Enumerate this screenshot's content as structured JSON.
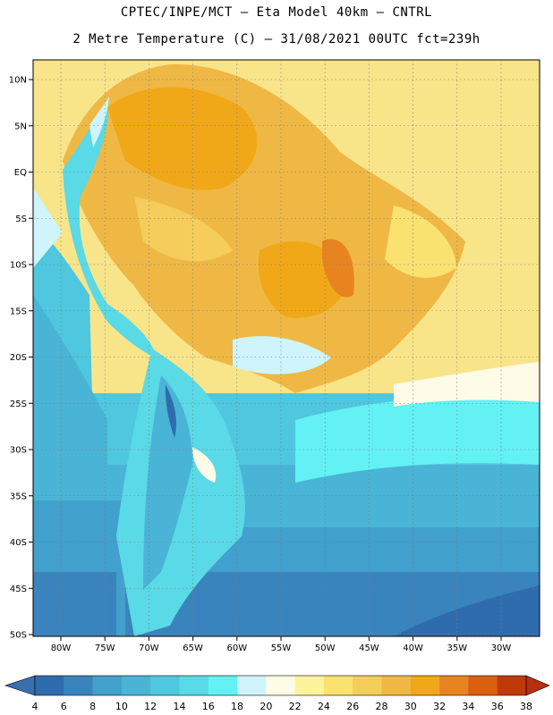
{
  "title_line1": "CPTEC/INPE/MCT  –  Eta Model 40km  –  CNTRL",
  "title_line2": "2 Metre Temperature (C)  –  31/08/2021 00UTC fct=239h",
  "lat_labels": [
    "10N",
    "5N",
    "EQ",
    "5S",
    "10S",
    "15S",
    "20S",
    "25S",
    "30S",
    "35S",
    "40S",
    "45S",
    "50S"
  ],
  "lon_labels": [
    "80W",
    "75W",
    "70W",
    "65W",
    "60W",
    "55W",
    "50W",
    "45W",
    "40W",
    "35W",
    "30W"
  ],
  "colorbar": {
    "labels": [
      "4",
      "6",
      "8",
      "10",
      "12",
      "14",
      "16",
      "18",
      "20",
      "22",
      "24",
      "26",
      "28",
      "30",
      "32",
      "34",
      "36",
      "38"
    ],
    "colors": [
      "#2f6cae",
      "#3a84be",
      "#41a0cc",
      "#4ab4d6",
      "#4fc7de",
      "#5ad9e6",
      "#63f1f4",
      "#cff4fb",
      "#fefbe6",
      "#fcf39c",
      "#f9e270",
      "#f4cd5a",
      "#efb844",
      "#f0a818",
      "#e88420",
      "#d9600e",
      "#c03a08"
    ],
    "low_color": "#3a6fae",
    "high_color": "#b83010"
  }
}
